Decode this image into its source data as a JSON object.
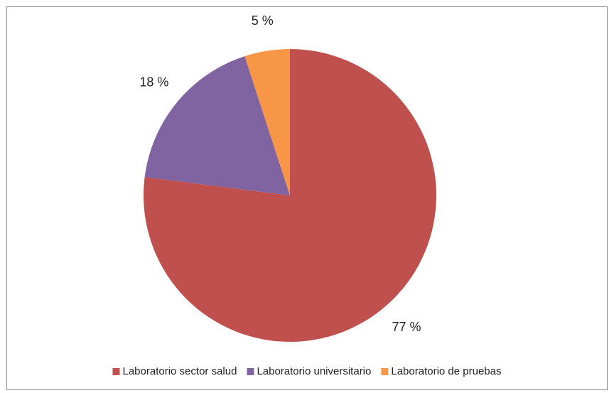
{
  "chart_data": {
    "type": "pie",
    "categories": [
      "Laboratorio sector salud",
      "Laboratorio universitario",
      "Laboratorio de pruebas"
    ],
    "values": [
      77,
      18,
      5
    ],
    "value_labels": [
      "77 %",
      "18 %",
      "5 %"
    ],
    "colors": [
      "#c0504d",
      "#8064a2",
      "#f79646"
    ],
    "legend": "bottom"
  }
}
